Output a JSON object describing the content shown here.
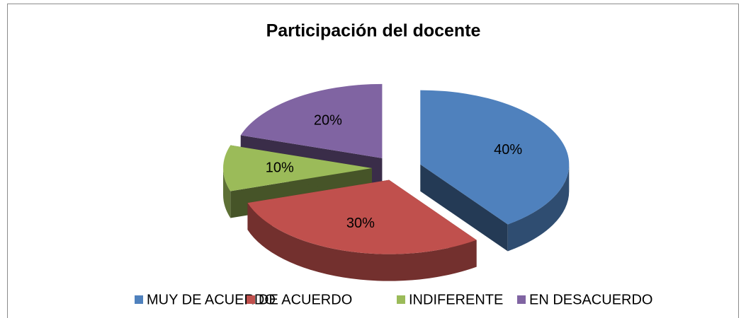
{
  "chart_data": {
    "type": "pie",
    "title": "Participación del docente",
    "categories": [
      "MUY DE ACUERDO",
      "DE ACUERDO",
      "INDIFERENTE",
      "EN DESACUERDO"
    ],
    "values": [
      40,
      30,
      10,
      20
    ],
    "value_labels": [
      "40%",
      "30%",
      "10%",
      "20%"
    ],
    "colors": [
      "#4f81bd",
      "#c0504d",
      "#9bbb59",
      "#8064a2"
    ],
    "legend": "bottom"
  }
}
